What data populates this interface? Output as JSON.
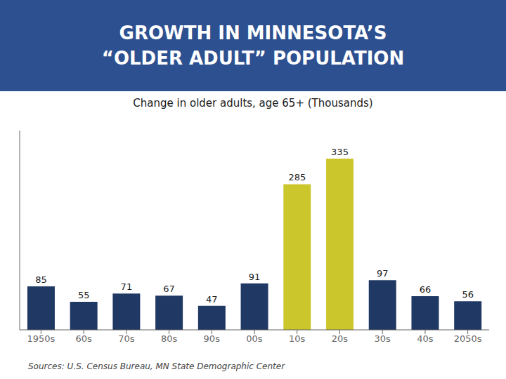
{
  "chart_data": {
    "type": "bar",
    "title": "GROWTH IN MINNESOTA’S\n“OLDER ADULT” POPULATION",
    "subtitle": "Change in older adults, age 65+ (Thousands)",
    "annotations": [
      "Sources: U.S. Census Bureau, MN State Demographic Center"
    ],
    "categories": [
      "1950s",
      "60s",
      "70s",
      "80s",
      "90s",
      "00s",
      "10s",
      "20s",
      "30s",
      "40s",
      "2050s"
    ],
    "values": [
      85,
      55,
      71,
      67,
      47,
      91,
      285,
      335,
      97,
      66,
      56
    ],
    "colors": [
      "#1f3864",
      "#1f3864",
      "#1f3864",
      "#1f3864",
      "#1f3864",
      "#1f3864",
      "#ccc62d",
      "#ccc62d",
      "#1f3864",
      "#1f3864",
      "#1f3864"
    ],
    "ylim": [
      0,
      390
    ],
    "data_labels": true,
    "tick_labels": "x",
    "grid": false
  }
}
